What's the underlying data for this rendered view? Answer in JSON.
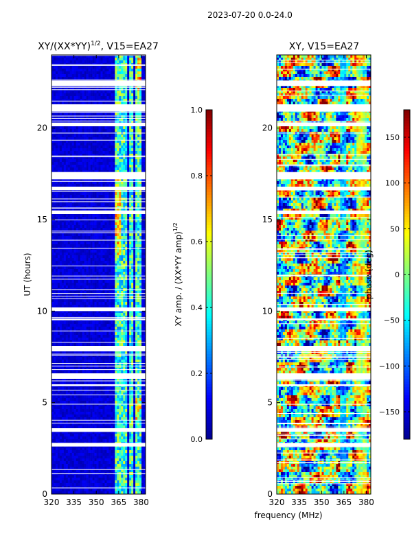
{
  "suptitle": "2023-07-20 0.0-24.0",
  "colormap": [
    "#00008f",
    "#0000ff",
    "#007fff",
    "#00ffff",
    "#7fff7f",
    "#ffff00",
    "#ff7f00",
    "#ff0000",
    "#7f0000"
  ],
  "chart_data": [
    {
      "type": "heatmap",
      "title_main": "XY/(XX*YY)",
      "title_sup": "1/2",
      "title_rest": ", V15=EA27",
      "xlabel": "",
      "ylabel": "UT (hours)",
      "xlim": [
        320,
        383
      ],
      "ylim": [
        0,
        24
      ],
      "xticks": [
        320,
        335,
        350,
        365,
        380
      ],
      "yticks": [
        0,
        5,
        10,
        15,
        20
      ],
      "colorbar": {
        "label_main": "XY amp. / (XX*YY amp)",
        "label_sup": "1/2",
        "range": [
          0.0,
          1.0
        ],
        "ticks": [
          0.0,
          0.2,
          0.4,
          0.6,
          0.8,
          1.0
        ],
        "tick_labels": [
          "0.0",
          "0.2",
          "0.4",
          "0.6",
          "0.8",
          "1.0"
        ]
      },
      "bright_channel_bands_mhz": [
        [
          363,
          366.5
        ],
        [
          367,
          370
        ],
        [
          371.5,
          374.5
        ],
        [
          376.5,
          380
        ]
      ],
      "blank_time_ranges_h": [
        [
          22.3,
          22.6
        ],
        [
          20.9,
          21.3
        ],
        [
          20.1,
          20.3
        ],
        [
          17.2,
          17.6
        ],
        [
          16.6,
          16.8
        ],
        [
          15.3,
          15.5
        ],
        [
          10.0,
          10.2
        ],
        [
          9.5,
          9.6
        ],
        [
          7.8,
          8.1
        ],
        [
          6.3,
          6.6
        ],
        [
          5.9,
          6.0
        ],
        [
          3.4,
          3.6
        ],
        [
          2.6,
          2.8
        ]
      ]
    },
    {
      "type": "heatmap",
      "title_main": "XY, V15=EA27",
      "xlabel": "frequency (MHz)",
      "ylabel": "",
      "xlim": [
        320,
        383
      ],
      "ylim": [
        0,
        24
      ],
      "xticks": [
        320,
        335,
        350,
        365,
        380
      ],
      "yticks": [
        0,
        5,
        10,
        15,
        20
      ],
      "colorbar": {
        "label_main": "phase (deg)",
        "range": [
          -180,
          180
        ],
        "ticks": [
          -150,
          -100,
          -50,
          0,
          50,
          100,
          150
        ],
        "tick_labels": [
          "−150",
          "−100",
          "−50",
          "0",
          "50",
          "100",
          "150"
        ]
      },
      "blank_time_ranges_h": [
        [
          22.3,
          22.6
        ],
        [
          20.9,
          21.3
        ],
        [
          20.1,
          20.3
        ],
        [
          17.2,
          17.6
        ],
        [
          16.6,
          16.8
        ],
        [
          15.3,
          15.5
        ],
        [
          10.0,
          10.2
        ],
        [
          9.5,
          9.6
        ],
        [
          7.8,
          8.1
        ],
        [
          6.3,
          6.6
        ],
        [
          5.9,
          6.0
        ],
        [
          3.4,
          3.6
        ],
        [
          2.6,
          2.8
        ]
      ]
    }
  ]
}
